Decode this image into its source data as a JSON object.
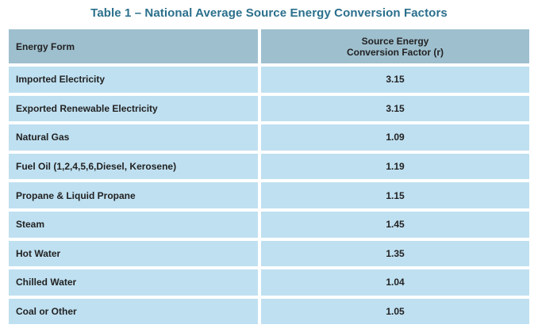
{
  "table": {
    "title": "Table 1 – National Average Source Energy Conversion Factors",
    "headers": {
      "energy_form": "Energy Form",
      "factor": "Source Energy\nConversion Factor (r)"
    },
    "rows": [
      {
        "energy_form": "Imported Electricity",
        "factor": "3.15"
      },
      {
        "energy_form": "Exported Renewable Electricity",
        "factor": "3.15"
      },
      {
        "energy_form": "Natural Gas",
        "factor": "1.09"
      },
      {
        "energy_form": "Fuel Oil (1,2,4,5,6,Diesel, Kerosene)",
        "factor": "1.19"
      },
      {
        "energy_form": "Propane & Liquid Propane",
        "factor": "1.15"
      },
      {
        "energy_form": "Steam",
        "factor": "1.45"
      },
      {
        "energy_form": "Hot Water",
        "factor": "1.35"
      },
      {
        "energy_form": "Chilled Water",
        "factor": "1.04"
      },
      {
        "energy_form": "Coal or Other",
        "factor": "1.05"
      }
    ],
    "colors": {
      "title": "#2a6f8c",
      "header_bg": "#9ebfce",
      "row_bg": "#bfe0f1"
    }
  }
}
